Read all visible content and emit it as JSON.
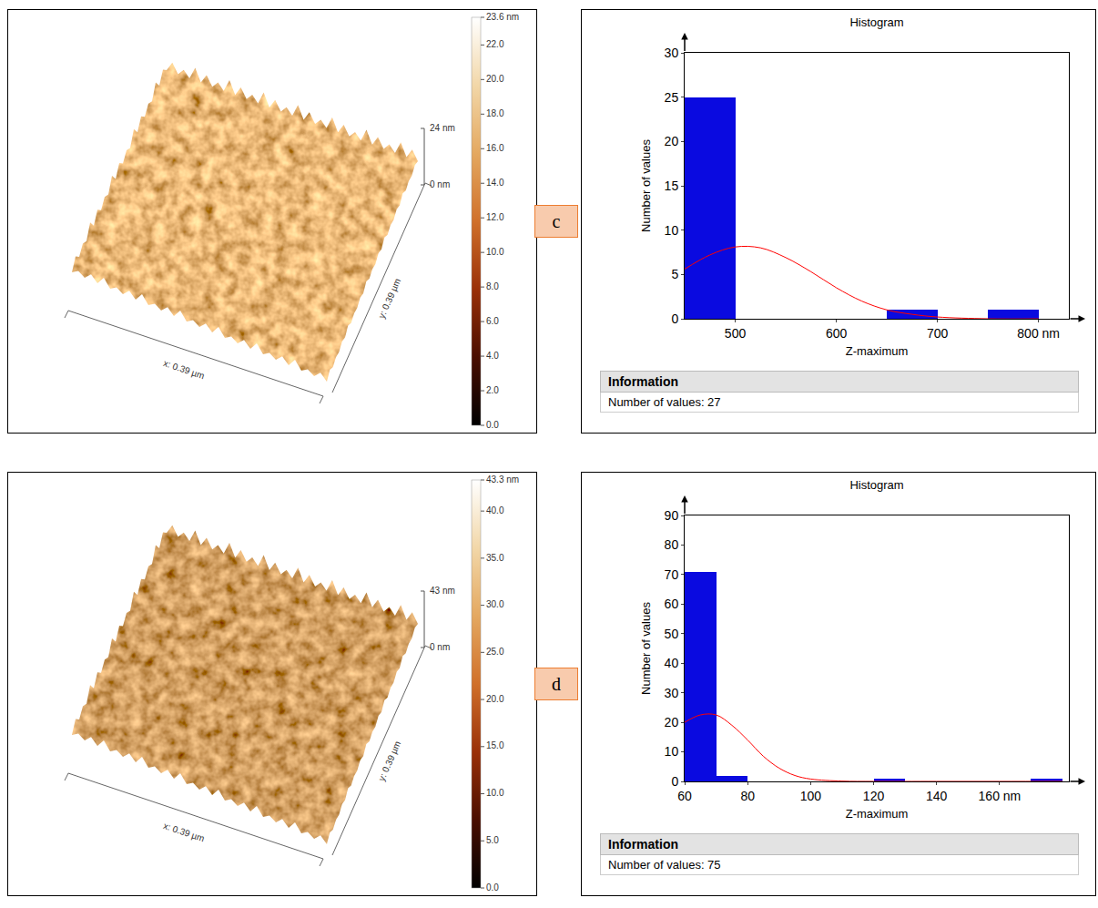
{
  "chart_data": [
    {
      "type": "histogram",
      "panel": "c",
      "title": "Histogram",
      "x_label": "Z-maximum",
      "y_label": "Number of values",
      "bins": [
        450,
        500,
        550,
        600,
        650,
        700,
        750,
        800
      ],
      "counts": [
        25,
        0,
        0,
        0,
        1,
        0,
        1
      ],
      "color": "#0a0ae0",
      "fit": {
        "type": "line",
        "color": "#ff0000",
        "x": [
          450,
          475,
          500,
          525,
          550,
          575,
          600,
          625,
          650,
          675,
          700,
          750,
          800
        ],
        "values": [
          5.6,
          7.2,
          8.1,
          8.0,
          6.9,
          5.3,
          3.5,
          2.0,
          1.0,
          0.5,
          0.2,
          0,
          0
        ]
      },
      "xlim": [
        450,
        830
      ],
      "xticks": [
        500,
        600,
        700,
        {
          "value": 800,
          "label": "800 nm"
        }
      ],
      "ylim": [
        0,
        30
      ],
      "yticks": [
        0,
        5,
        10,
        15,
        20,
        25,
        30
      ],
      "info": {
        "title": "Information",
        "text": "Number of values: 27"
      }
    },
    {
      "type": "histogram",
      "panel": "d",
      "title": "Histogram",
      "x_label": "Z-maximum",
      "y_label": "Number of values",
      "bins": [
        60,
        70,
        80,
        90,
        100,
        110,
        120,
        130,
        140,
        150,
        160,
        170,
        180
      ],
      "counts": [
        71,
        2,
        0,
        0,
        0,
        0,
        1,
        0,
        0,
        0,
        0,
        1
      ],
      "color": "#0a0ae0",
      "fit": {
        "type": "line",
        "color": "#ff0000",
        "x": [
          60,
          65,
          70,
          75,
          80,
          85,
          90,
          95,
          100,
          110,
          120,
          140,
          160,
          180
        ],
        "values": [
          20,
          22.5,
          22.5,
          19,
          14,
          8.5,
          4.5,
          2,
          0.8,
          0.1,
          0,
          0,
          0,
          0
        ]
      },
      "xlim": [
        60,
        182
      ],
      "xticks": [
        60,
        80,
        100,
        120,
        140,
        {
          "value": 160,
          "label": "160 nm"
        }
      ],
      "ylim": [
        0,
        90
      ],
      "yticks": [
        0,
        10,
        20,
        30,
        40,
        50,
        60,
        70,
        80,
        90
      ],
      "info": {
        "title": "Information",
        "text": "Number of values: 75"
      }
    }
  ],
  "images": [
    {
      "type": "afm_3d",
      "panel": "c",
      "x_label": "x: 0.39 µm",
      "y_label": "y: 0.39 µm",
      "z_scale": [
        {
          "value": 24,
          "label": "24 nm"
        },
        {
          "value": 0,
          "label": "0 nm"
        }
      ],
      "colorbar": {
        "range": [
          0,
          23.6
        ],
        "ticks": [
          {
            "value": 0,
            "label": "0.0"
          },
          {
            "value": 2,
            "label": "2.0"
          },
          {
            "value": 4,
            "label": "4.0"
          },
          {
            "value": 6,
            "label": "6.0"
          },
          {
            "value": 8,
            "label": "8.0"
          },
          {
            "value": 10,
            "label": "10.0"
          },
          {
            "value": 12,
            "label": "12.0"
          },
          {
            "value": 14,
            "label": "14.0"
          },
          {
            "value": 16,
            "label": "16.0"
          },
          {
            "value": 18,
            "label": "18.0"
          },
          {
            "value": 20,
            "label": "20.0"
          },
          {
            "value": 22,
            "label": "22.0"
          },
          {
            "value": 23.6,
            "label": "23.6 nm"
          }
        ],
        "colors": [
          "#000000",
          "#4a0e00",
          "#9a3008",
          "#d0702a",
          "#e4a860",
          "#f2d7a8",
          "#ffffff"
        ]
      }
    },
    {
      "type": "afm_3d",
      "panel": "d",
      "x_label": "x: 0.39 µm",
      "y_label": "y: 0.39 µm",
      "z_scale": [
        {
          "value": 43,
          "label": "43 nm"
        },
        {
          "value": 0,
          "label": "0 nm"
        }
      ],
      "colorbar": {
        "range": [
          0,
          43.3
        ],
        "ticks": [
          {
            "value": 0,
            "label": "0.0"
          },
          {
            "value": 5,
            "label": "5.0"
          },
          {
            "value": 10,
            "label": "10.0"
          },
          {
            "value": 15,
            "label": "15.0"
          },
          {
            "value": 20,
            "label": "20.0"
          },
          {
            "value": 25,
            "label": "25.0"
          },
          {
            "value": 30,
            "label": "30.0"
          },
          {
            "value": 35,
            "label": "35.0"
          },
          {
            "value": 40,
            "label": "40.0"
          },
          {
            "value": 43.3,
            "label": "43.3 nm"
          }
        ],
        "colors": [
          "#000000",
          "#4a0e00",
          "#9a3008",
          "#d0702a",
          "#e4a860",
          "#f2d7a8",
          "#ffffff"
        ]
      }
    }
  ]
}
